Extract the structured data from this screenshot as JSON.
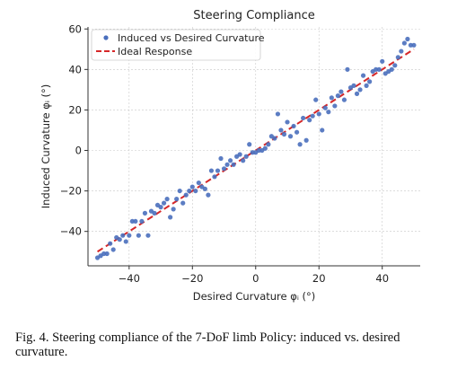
{
  "chart_data": {
    "type": "scatter",
    "title": "Steering Compliance",
    "xlabel": "Desired Curvature φᵢ (°)",
    "ylabel": "Induced Curvature φᵢ (°)",
    "xlim": [
      -53,
      52
    ],
    "ylim": [
      -57,
      61
    ],
    "xticks": [
      -40,
      -20,
      0,
      20,
      40
    ],
    "yticks": [
      -40,
      -20,
      0,
      20,
      40,
      60
    ],
    "xtick_labels": [
      "−40",
      "−20",
      "0",
      "20",
      "40"
    ],
    "ytick_labels": [
      "−40",
      "−20",
      "0",
      "20",
      "40",
      "60"
    ],
    "grid": true,
    "legend_position": "top-left",
    "colors": {
      "points": "#4a6fbd",
      "ideal": "#d62728",
      "grid": "#c8c8c8",
      "axes": "#333333"
    },
    "series": [
      {
        "name": "Induced vs Desired Curvature",
        "style": "points",
        "x": [
          -50,
          -49,
          -48,
          -47,
          -46,
          -45,
          -44,
          -43,
          -42,
          -41,
          -40,
          -39,
          -38,
          -37,
          -36,
          -35,
          -34,
          -33,
          -32,
          -31,
          -30,
          -29,
          -28,
          -27,
          -26,
          -25,
          -24,
          -23,
          -22,
          -21,
          -20,
          -19,
          -18,
          -17,
          -16,
          -15,
          -14,
          -13,
          -12,
          -11,
          -10,
          -9,
          -8,
          -7,
          -6,
          -5,
          -4,
          -3,
          -2,
          -1,
          0,
          1,
          2,
          3,
          4,
          5,
          6,
          7,
          8,
          9,
          10,
          11,
          12,
          13,
          14,
          15,
          16,
          17,
          18,
          19,
          20,
          21,
          22,
          23,
          24,
          25,
          26,
          27,
          28,
          29,
          30,
          31,
          32,
          33,
          34,
          35,
          36,
          37,
          38,
          39,
          40,
          41,
          42,
          43,
          44,
          45,
          46,
          47,
          48,
          49,
          50
        ],
        "y": [
          -53,
          -52,
          -51,
          -51,
          -46,
          -49,
          -43,
          -44,
          -42,
          -45,
          -42,
          -35,
          -35,
          -42,
          -35,
          -31,
          -42,
          -30,
          -31,
          -27,
          -28,
          -26,
          -24,
          -33,
          -29,
          -24,
          -20,
          -26,
          -22,
          -20,
          -18,
          -20,
          -16,
          -18,
          -19,
          -22,
          -10,
          -13,
          -10,
          -4,
          -9,
          -7,
          -5,
          -7,
          -3,
          -2,
          -5,
          -3,
          3,
          -1,
          -1,
          0,
          0,
          1,
          3,
          7,
          6,
          18,
          10,
          8,
          14,
          7,
          12,
          9,
          3,
          16,
          5,
          15,
          17,
          25,
          18,
          10,
          21,
          19,
          26,
          22,
          27,
          29,
          25,
          40,
          31,
          32,
          28,
          30,
          37,
          32,
          34,
          39,
          40,
          40,
          44,
          38,
          39,
          40,
          42,
          46,
          49,
          53,
          55,
          52,
          52
        ]
      },
      {
        "name": "Ideal Response",
        "style": "dashed-line",
        "x": [
          -50,
          50
        ],
        "y": [
          -50,
          50
        ]
      }
    ]
  },
  "caption": "Fig. 4.   Steering compliance of the 7-DoF limb Policy: induced vs. desired curvature."
}
